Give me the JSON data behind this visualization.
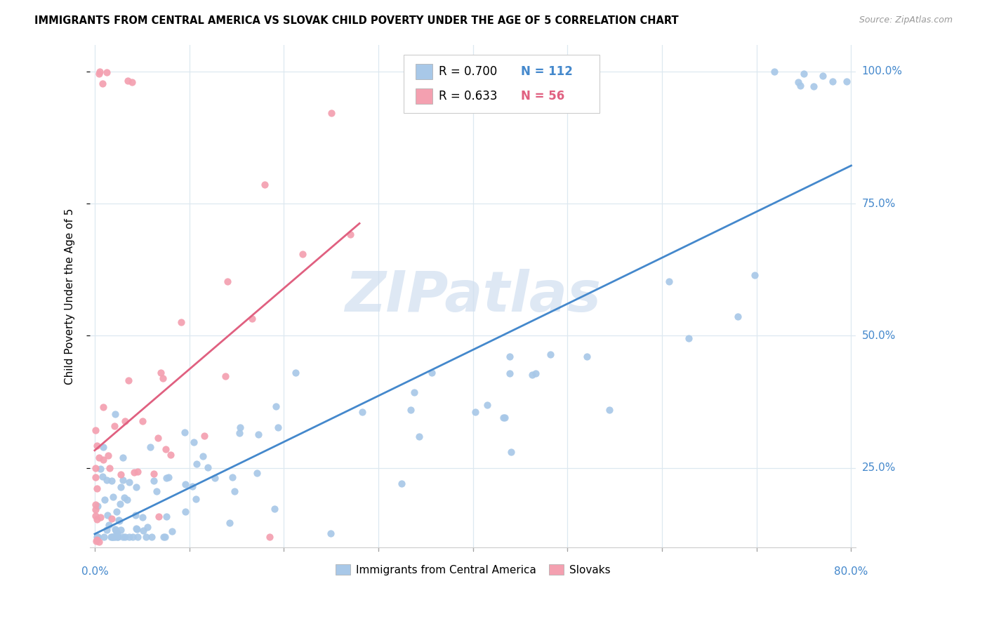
{
  "title": "IMMIGRANTS FROM CENTRAL AMERICA VS SLOVAK CHILD POVERTY UNDER THE AGE OF 5 CORRELATION CHART",
  "source": "Source: ZipAtlas.com",
  "ylabel": "Child Poverty Under the Age of 5",
  "legend_label_blue": "Immigrants from Central America",
  "legend_label_pink": "Slovaks",
  "blue_color": "#a8c8e8",
  "pink_color": "#f4a0b0",
  "blue_line_color": "#4488cc",
  "pink_line_color": "#e06080",
  "watermark_color": "#d0dff0",
  "blue_r": "0.700",
  "blue_n": "112",
  "pink_r": "0.633",
  "pink_n": "56",
  "xlim": [
    0.0,
    0.8
  ],
  "ylim": [
    0.1,
    1.05
  ],
  "yticks": [
    0.25,
    0.5,
    0.75,
    1.0
  ],
  "ytick_labels": [
    "25.0%",
    "50.0%",
    "75.0%",
    "100.0%"
  ],
  "xtick_labels": [
    "0.0%",
    "80.0%"
  ],
  "xtick_positions": [
    0.0,
    0.8
  ],
  "grid_color": "#dde8f0",
  "spine_color": "#cccccc"
}
